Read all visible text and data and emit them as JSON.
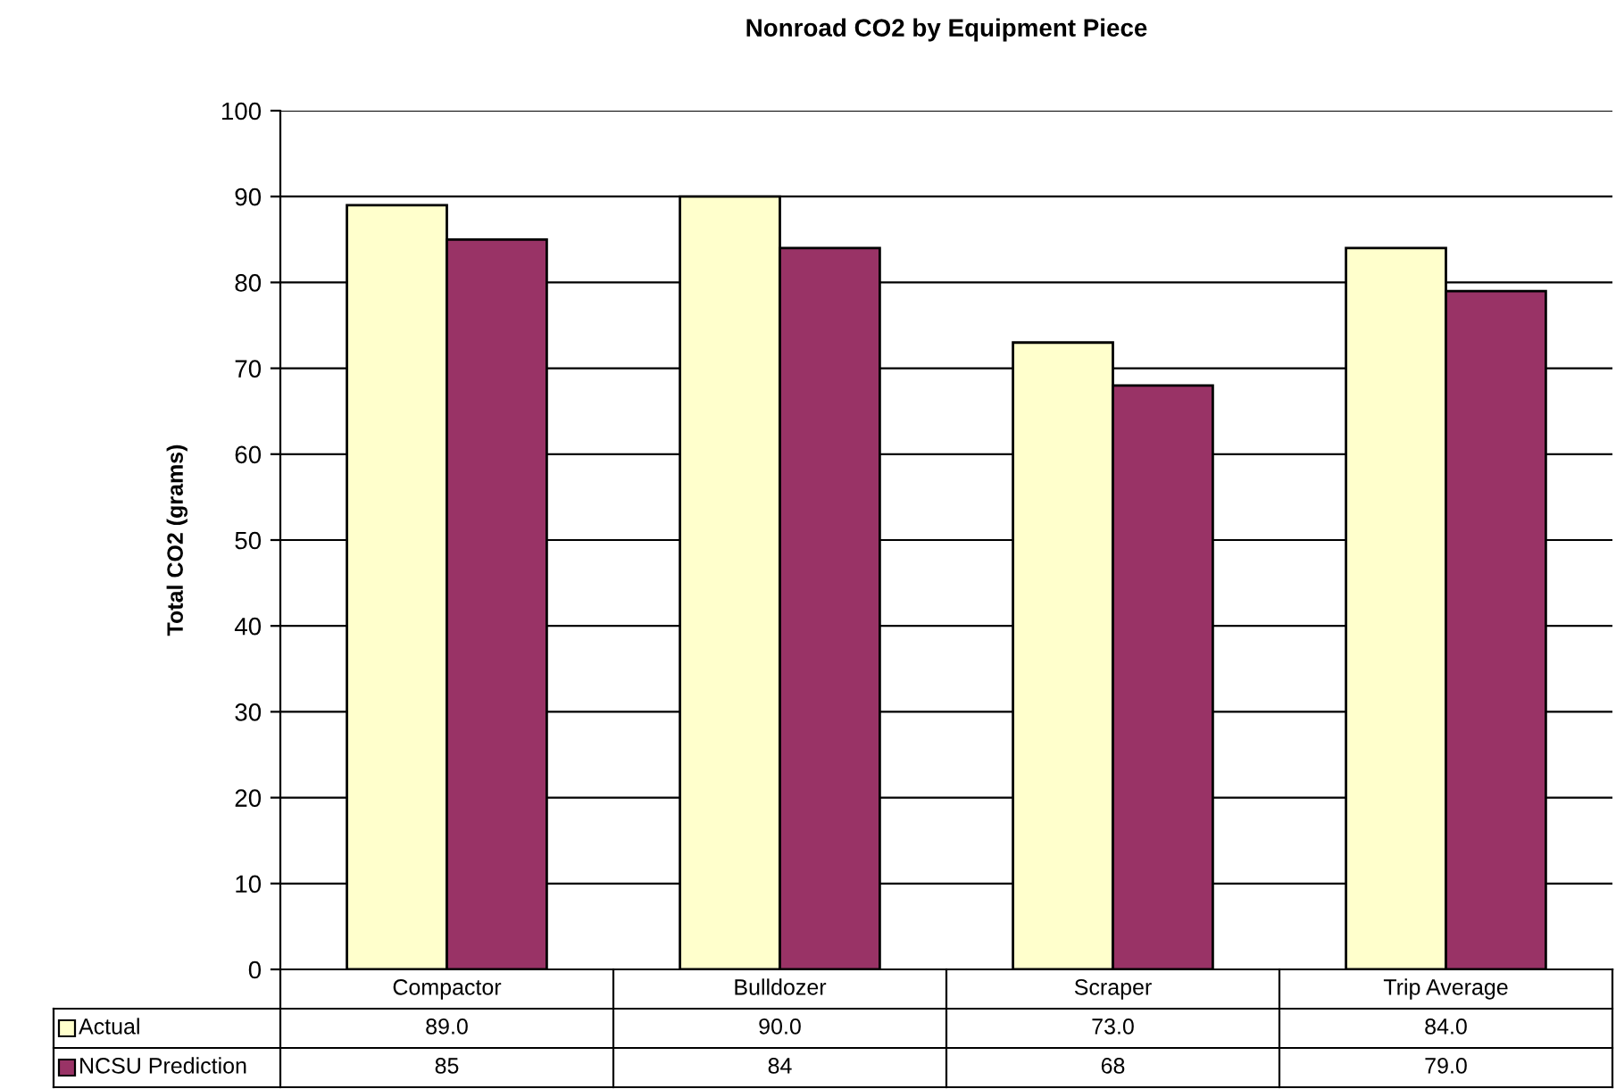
{
  "chart_data": {
    "type": "bar",
    "title": "Nonroad CO2 by Equipment Piece",
    "ylabel": "Total CO2 (grams)",
    "categories": [
      "Compactor",
      "Bulldozer",
      "Scraper",
      "Trip Average"
    ],
    "series": [
      {
        "name": "Actual",
        "color": "#ffffcc",
        "values": [
          89,
          90,
          73,
          84
        ],
        "value_labels": [
          "89.0",
          "90.0",
          "73.0",
          "84.0"
        ]
      },
      {
        "name": "NCSU Prediction",
        "color": "#993366",
        "values": [
          85,
          84,
          68,
          79
        ],
        "value_labels": [
          "85",
          "84",
          "68",
          "79.0"
        ]
      }
    ],
    "ylim": [
      0,
      100
    ],
    "yticks": [
      0,
      10,
      20,
      30,
      40,
      50,
      60,
      70,
      80,
      90,
      100
    ],
    "grid": "y",
    "legend": "bottom left"
  }
}
